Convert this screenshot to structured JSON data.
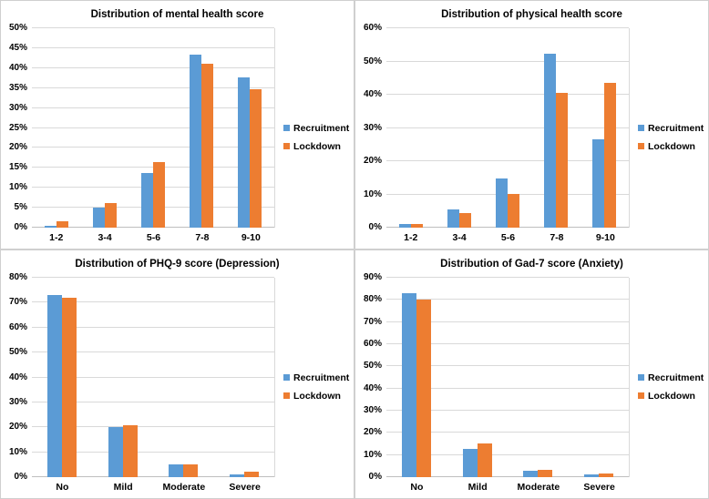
{
  "colors": {
    "recruitment": "#5B9BD5",
    "lockdown": "#ED7D31",
    "gridline": "#D9D9D9",
    "axis_line": "#BFBFBF",
    "panel_border": "#CFCFCF",
    "text": "#000000",
    "background": "#FFFFFF"
  },
  "chart_data": [
    {
      "type": "bar",
      "title": "Distribution of mental health score",
      "categories": [
        "1-2",
        "3-4",
        "5-6",
        "7-8",
        "9-10"
      ],
      "series": [
        {
          "name": "Recruitment",
          "color": "#5B9BD5",
          "values": [
            0.5,
            5.0,
            13.8,
            43.3,
            37.6
          ]
        },
        {
          "name": "Lockdown",
          "color": "#ED7D31",
          "values": [
            1.6,
            6.2,
            16.4,
            41.2,
            34.6
          ]
        }
      ],
      "xlabel": "",
      "ylabel": "",
      "ylim": [
        0,
        50
      ],
      "ytick_step": 5,
      "ytick_suffix": "%",
      "grid": true,
      "legend_position": "right"
    },
    {
      "type": "bar",
      "title": "Distribution of physical health score",
      "categories": [
        "1-2",
        "3-4",
        "5-6",
        "7-8",
        "9-10"
      ],
      "series": [
        {
          "name": "Recruitment",
          "color": "#5B9BD5",
          "values": [
            1.0,
            5.5,
            14.8,
            52.2,
            26.6
          ]
        },
        {
          "name": "Lockdown",
          "color": "#ED7D31",
          "values": [
            1.2,
            4.4,
            10.2,
            40.5,
            43.6
          ]
        }
      ],
      "xlabel": "",
      "ylabel": "",
      "ylim": [
        0,
        60
      ],
      "ytick_step": 10,
      "ytick_suffix": "%",
      "grid": true,
      "legend_position": "right"
    },
    {
      "type": "bar",
      "title": "Distribution of PHQ-9 score (Depression)",
      "categories": [
        "No",
        "Mild",
        "Moderate",
        "Severe"
      ],
      "series": [
        {
          "name": "Recruitment",
          "color": "#5B9BD5",
          "values": [
            73.0,
            20.0,
            5.0,
            1.2
          ]
        },
        {
          "name": "Lockdown",
          "color": "#ED7D31",
          "values": [
            72.0,
            20.7,
            5.0,
            2.3
          ]
        }
      ],
      "xlabel": "",
      "ylabel": "",
      "ylim": [
        0,
        80
      ],
      "ytick_step": 10,
      "ytick_suffix": "%",
      "grid": true,
      "legend_position": "right"
    },
    {
      "type": "bar",
      "title": "Distribution of Gad-7 score (Anxiety)",
      "categories": [
        "No",
        "Mild",
        "Moderate",
        "Severe"
      ],
      "series": [
        {
          "name": "Recruitment",
          "color": "#5B9BD5",
          "values": [
            83.0,
            12.6,
            3.0,
            1.2
          ]
        },
        {
          "name": "Lockdown",
          "color": "#ED7D31",
          "values": [
            80.2,
            15.1,
            3.1,
            1.5
          ]
        }
      ],
      "xlabel": "",
      "ylabel": "",
      "ylim": [
        0,
        90
      ],
      "ytick_step": 10,
      "ytick_suffix": "%",
      "grid": true,
      "legend_position": "right"
    }
  ]
}
